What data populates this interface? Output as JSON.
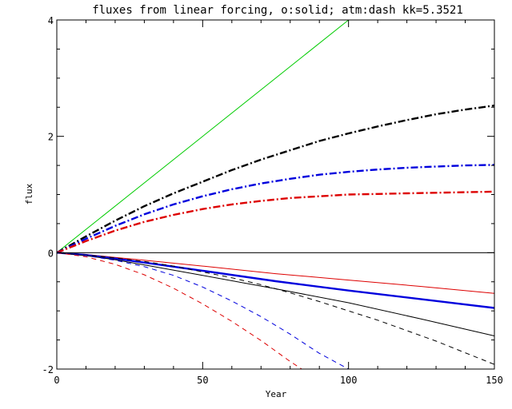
{
  "chart_data": {
    "type": "line",
    "title": "fluxes from linear forcing, o:solid; atm:dash kk=5.3521",
    "xlabel": "Year",
    "ylabel": "flux",
    "xlim": [
      0,
      150
    ],
    "ylim": [
      -2,
      4
    ],
    "xticks": [
      0,
      50,
      100,
      150
    ],
    "yticks": [
      -2,
      0,
      2,
      4
    ],
    "zero_line": true,
    "grid": false,
    "legend": "none",
    "series": [
      {
        "color": "#00cc00",
        "style": "solid",
        "width": 1,
        "x": [
          0,
          100
        ],
        "y": [
          0,
          4.0
        ]
      },
      {
        "color": "#000000",
        "style": "dashdot",
        "width": 2.4,
        "x": [
          0,
          10,
          20,
          30,
          40,
          50,
          60,
          70,
          80,
          90,
          100,
          110,
          120,
          130,
          140,
          150
        ],
        "y": [
          0,
          0.28,
          0.55,
          0.8,
          1.02,
          1.22,
          1.42,
          1.6,
          1.76,
          1.92,
          2.05,
          2.17,
          2.28,
          2.38,
          2.46,
          2.53
        ]
      },
      {
        "color": "#0000dd",
        "style": "dashdot",
        "width": 2.4,
        "x": [
          0,
          10,
          20,
          30,
          40,
          50,
          60,
          70,
          80,
          90,
          100,
          110,
          120,
          130,
          140,
          150
        ],
        "y": [
          0,
          0.24,
          0.46,
          0.66,
          0.83,
          0.97,
          1.09,
          1.19,
          1.27,
          1.34,
          1.39,
          1.43,
          1.46,
          1.48,
          1.5,
          1.51
        ]
      },
      {
        "color": "#dd0000",
        "style": "dashdot",
        "width": 2.4,
        "x": [
          0,
          10,
          20,
          30,
          40,
          50,
          60,
          70,
          80,
          90,
          100,
          110,
          120,
          130,
          140,
          150
        ],
        "y": [
          0,
          0.2,
          0.38,
          0.53,
          0.65,
          0.75,
          0.83,
          0.89,
          0.94,
          0.97,
          1.0,
          1.01,
          1.02,
          1.03,
          1.04,
          1.05
        ]
      },
      {
        "color": "#dd0000",
        "style": "solid",
        "width": 1,
        "x": [
          0,
          10,
          20,
          30,
          50,
          75,
          100,
          125,
          150
        ],
        "y": [
          0,
          -0.03,
          -0.08,
          -0.13,
          -0.23,
          -0.36,
          -0.47,
          -0.58,
          -0.7
        ]
      },
      {
        "color": "#0000dd",
        "style": "solid",
        "width": 2.4,
        "x": [
          0,
          10,
          20,
          30,
          50,
          75,
          100,
          125,
          150
        ],
        "y": [
          0,
          -0.04,
          -0.1,
          -0.17,
          -0.31,
          -0.49,
          -0.65,
          -0.8,
          -0.95
        ]
      },
      {
        "color": "#000000",
        "style": "solid",
        "width": 1,
        "x": [
          0,
          10,
          20,
          30,
          50,
          75,
          100,
          125,
          150
        ],
        "y": [
          0,
          -0.05,
          -0.12,
          -0.21,
          -0.39,
          -0.62,
          -0.86,
          -1.14,
          -1.43
        ]
      },
      {
        "color": "#000000",
        "style": "dash",
        "width": 1,
        "x": [
          0,
          10,
          20,
          30,
          40,
          50,
          60,
          70,
          80,
          90,
          100,
          110,
          120,
          130,
          140,
          150
        ],
        "y": [
          0,
          -0.04,
          -0.09,
          -0.15,
          -0.23,
          -0.33,
          -0.43,
          -0.55,
          -0.69,
          -0.84,
          -1.0,
          -1.16,
          -1.34,
          -1.52,
          -1.72,
          -1.92
        ]
      },
      {
        "color": "#0000dd",
        "style": "dash",
        "width": 1,
        "x": [
          0,
          10,
          20,
          30,
          40,
          50,
          60,
          70,
          80,
          90,
          100
        ],
        "y": [
          0,
          -0.05,
          -0.13,
          -0.24,
          -0.39,
          -0.59,
          -0.83,
          -1.1,
          -1.4,
          -1.73,
          -2.0
        ]
      },
      {
        "color": "#dd0000",
        "style": "dash",
        "width": 1,
        "x": [
          0,
          10,
          20,
          30,
          40,
          50,
          60,
          70,
          80,
          84
        ],
        "y": [
          0,
          -0.07,
          -0.2,
          -0.38,
          -0.61,
          -0.88,
          -1.18,
          -1.51,
          -1.87,
          -2.0
        ]
      }
    ]
  }
}
